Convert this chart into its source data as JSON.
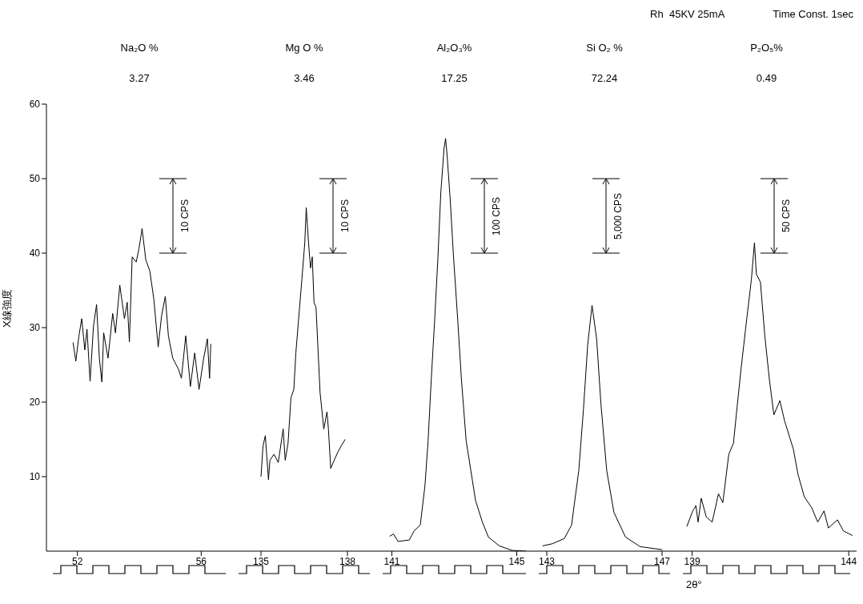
{
  "chart_data": [
    {
      "type": "line",
      "title": "Na₂O %",
      "subtitle": "3.27",
      "ylabel": "X線強度",
      "color": "#000000",
      "xlim": [
        51,
        57
      ],
      "xticks": [
        52,
        56
      ],
      "ylim": [
        0,
        60
      ],
      "yticks": [
        10,
        20,
        30,
        40,
        50,
        60
      ],
      "annotations": [
        "10 CPS"
      ],
      "x": [
        51.86,
        51.95,
        52.05,
        52.14,
        52.24,
        52.31,
        52.41,
        52.52,
        52.62,
        52.71,
        52.79,
        52.85,
        52.99,
        53.14,
        53.23,
        53.37,
        53.52,
        53.61,
        53.68,
        53.77,
        53.9,
        53.99,
        54.09,
        54.21,
        54.34,
        54.47,
        54.61,
        54.72,
        54.84,
        54.94,
        55.08,
        55.27,
        55.36,
        55.5,
        55.65,
        55.79,
        55.93,
        56.08,
        56.2,
        56.27,
        56.31
      ],
      "values": [
        28.0,
        25.5,
        28.9,
        31.2,
        27.0,
        29.8,
        22.8,
        30.2,
        33.1,
        25.9,
        22.7,
        29.3,
        25.9,
        31.9,
        29.3,
        35.7,
        31.2,
        33.4,
        28.1,
        39.5,
        38.8,
        40.6,
        43.3,
        39.1,
        37.6,
        33.8,
        27.4,
        31.6,
        34.2,
        28.9,
        25.9,
        24.4,
        23.2,
        28.9,
        22.1,
        26.6,
        21.7,
        25.9,
        28.5,
        23.2,
        27.8
      ]
    },
    {
      "type": "line",
      "title": "Mg O %",
      "subtitle": "3.46",
      "color": "#000000",
      "xlim": [
        134,
        139
      ],
      "xticks": [
        135,
        138
      ],
      "ylim": [
        0,
        60
      ],
      "yticks": [
        10,
        20,
        30,
        40,
        50,
        60
      ],
      "tick_labels": "x",
      "annotations": [
        "10 CPS"
      ],
      "x": [
        135.0,
        135.07,
        135.15,
        135.26,
        135.31,
        135.45,
        135.6,
        135.77,
        135.84,
        135.94,
        136.04,
        136.14,
        136.21,
        136.33,
        136.42,
        136.52,
        136.57,
        136.65,
        136.72,
        136.78,
        136.84,
        136.91,
        137.05,
        137.18,
        137.29,
        137.34,
        137.42,
        137.54,
        137.68,
        137.78,
        137.92
      ],
      "values": [
        10.0,
        14.1,
        15.5,
        9.6,
        12.2,
        13.0,
        11.9,
        16.4,
        12.2,
        14.5,
        20.6,
        21.7,
        26.6,
        32.3,
        36.5,
        41.4,
        46.1,
        41.4,
        38.0,
        39.5,
        33.4,
        32.7,
        21.3,
        16.4,
        18.7,
        16.4,
        11.1,
        12.2,
        13.4,
        14.1,
        15.0
      ]
    },
    {
      "type": "line",
      "title": "Al₂O₃%",
      "subtitle": "17.25",
      "color": "#000000",
      "xlim": [
        140.5,
        145.5
      ],
      "xticks": [
        141,
        145
      ],
      "ylim": [
        0,
        60
      ],
      "yticks": [
        10,
        20,
        30,
        40,
        50,
        60
      ],
      "tick_labels": "x",
      "annotations": [
        "100 CPS"
      ],
      "x": [
        140.93,
        141.05,
        141.2,
        141.56,
        141.71,
        141.91,
        142.06,
        142.16,
        142.26,
        142.37,
        142.47,
        142.57,
        142.67,
        142.72,
        142.77,
        142.87,
        142.97,
        143.11,
        143.23,
        143.38,
        143.53,
        143.68,
        143.89,
        144.09,
        144.44,
        144.85,
        145.3
      ],
      "values": [
        2.0,
        2.3,
        1.3,
        1.5,
        2.7,
        3.5,
        8.8,
        14.8,
        22.9,
        31.0,
        39.0,
        48.3,
        54.0,
        55.4,
        53.1,
        47.1,
        39.8,
        31.0,
        22.9,
        14.8,
        10.8,
        6.8,
        4.0,
        1.9,
        0.7,
        0.1,
        0
      ]
    },
    {
      "type": "line",
      "title": "Si O₂ %",
      "subtitle": "72.24",
      "color": "#000000",
      "xlim": [
        142.5,
        147.5
      ],
      "xticks": [
        143,
        147
      ],
      "ylim": [
        0,
        60
      ],
      "yticks": [
        10,
        20,
        30,
        40,
        50,
        60
      ],
      "tick_labels": "x",
      "annotations": [
        "5,000 CPS"
      ],
      "x": [
        142.85,
        143.2,
        143.61,
        143.86,
        144.11,
        144.27,
        144.42,
        144.57,
        144.73,
        144.88,
        145.08,
        145.33,
        145.73,
        146.24,
        147.0
      ],
      "values": [
        0.7,
        1.0,
        1.7,
        3.5,
        10.8,
        18.9,
        27.7,
        33.0,
        28.5,
        19.7,
        10.8,
        5.2,
        1.9,
        0.6,
        0.2
      ]
    },
    {
      "type": "line",
      "title": "P₂O₅%",
      "subtitle": "0.49",
      "xlabel": "2θ°",
      "color": "#000000",
      "xlim": [
        138.5,
        144.25
      ],
      "xticks": [
        139,
        144
      ],
      "ylim": [
        0,
        60
      ],
      "yticks": [
        10,
        20,
        30,
        40,
        50,
        60
      ],
      "tick_labels": "x",
      "annotations": [
        "50 CPS",
        "Rh  45KV 25mA",
        "Time Const. 1sec"
      ],
      "x": [
        138.83,
        139.02,
        139.12,
        139.19,
        139.29,
        139.45,
        139.64,
        139.84,
        139.98,
        140.17,
        140.32,
        140.41,
        140.56,
        140.7,
        140.89,
        140.99,
        141.05,
        141.18,
        141.32,
        141.47,
        141.61,
        141.8,
        141.95,
        142.23,
        142.38,
        142.58,
        142.82,
        143.01,
        143.21,
        143.35,
        143.64,
        143.83,
        144.12
      ],
      "values": [
        3.3,
        5.4,
        6.1,
        3.9,
        7.1,
        4.6,
        3.9,
        7.7,
        6.5,
        13.0,
        14.5,
        18.3,
        24.4,
        29.6,
        36.4,
        41.4,
        37.2,
        36.1,
        28.9,
        22.9,
        18.3,
        20.2,
        17.5,
        13.7,
        10.3,
        7.3,
        5.8,
        3.9,
        5.4,
        3.1,
        4.2,
        2.7,
        2.1
      ]
    }
  ]
}
